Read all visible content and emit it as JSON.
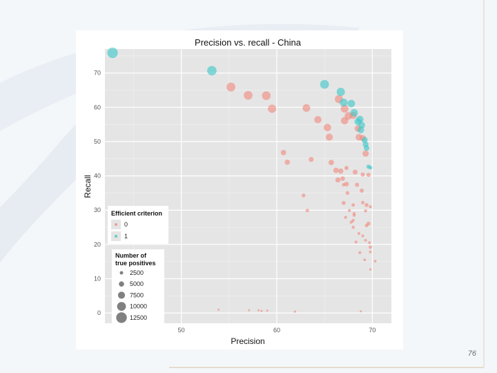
{
  "slide": {
    "page_number": "76"
  },
  "chart_data": {
    "type": "scatter",
    "title": "Precision vs. recall - China",
    "xlabel": "Precision",
    "ylabel": "Recall",
    "xlim": [
      42,
      72
    ],
    "ylim": [
      -3,
      77
    ],
    "x_ticks": [
      50,
      60,
      70
    ],
    "y_ticks": [
      0,
      10,
      20,
      30,
      40,
      50,
      60,
      70
    ],
    "grid": true,
    "colors": {
      "0": "#f08a80",
      "1": "#3ec6c8",
      "size_legend": "#555555"
    },
    "legend_color": {
      "title": "Efficient criterion",
      "position": "left",
      "entries": [
        {
          "label": "0",
          "key": "0"
        },
        {
          "label": "1",
          "key": "1"
        }
      ]
    },
    "legend_size": {
      "title_line1": "Number of",
      "title_line2": "true positives",
      "position": "bottom-left",
      "entries": [
        {
          "label": "2500",
          "value": 2500
        },
        {
          "label": "5000",
          "value": 5000
        },
        {
          "label": "7500",
          "value": 7500
        },
        {
          "label": "10000",
          "value": 10000
        },
        {
          "label": "12500",
          "value": 12500
        }
      ]
    },
    "series": [
      {
        "name": "0",
        "points": [
          [
            55.2,
            65.9,
            10000
          ],
          [
            57.0,
            63.5,
            9800
          ],
          [
            58.9,
            63.4,
            9800
          ],
          [
            59.5,
            59.6,
            9200
          ],
          [
            63.1,
            59.8,
            8400
          ],
          [
            64.3,
            56.4,
            7800
          ],
          [
            65.3,
            54.1,
            8000
          ],
          [
            65.5,
            51.3,
            7500
          ],
          [
            66.5,
            62.4,
            9000
          ],
          [
            67.1,
            59.6,
            8600
          ],
          [
            67.5,
            57.5,
            8200
          ],
          [
            67.1,
            56.1,
            8000
          ],
          [
            68.0,
            57.6,
            7500
          ],
          [
            68.5,
            53.8,
            7000
          ],
          [
            68.6,
            51.3,
            7000
          ],
          [
            69.0,
            51.0,
            6500
          ],
          [
            69.3,
            46.5,
            6500
          ],
          [
            60.7,
            46.8,
            5200
          ],
          [
            61.1,
            44.0,
            5000
          ],
          [
            63.6,
            44.8,
            4600
          ],
          [
            65.7,
            43.9,
            5200
          ],
          [
            66.2,
            41.6,
            5200
          ],
          [
            66.7,
            41.4,
            5000
          ],
          [
            67.3,
            42.3,
            3500
          ],
          [
            68.2,
            41.1,
            4400
          ],
          [
            69.0,
            40.4,
            3500
          ],
          [
            69.6,
            40.3,
            3500
          ],
          [
            66.4,
            38.8,
            4800
          ],
          [
            66.9,
            39.2,
            4000
          ],
          [
            67.3,
            37.6,
            4200
          ],
          [
            67.0,
            37.4,
            2500
          ],
          [
            68.4,
            37.4,
            3500
          ],
          [
            68.9,
            35.7,
            3500
          ],
          [
            67.4,
            35.0,
            3000
          ],
          [
            62.8,
            34.3,
            3000
          ],
          [
            67.0,
            32.1,
            3200
          ],
          [
            68.0,
            31.5,
            2500
          ],
          [
            69.0,
            32.2,
            2500
          ],
          [
            69.4,
            31.5,
            3200
          ],
          [
            63.2,
            29.9,
            2500
          ],
          [
            67.6,
            29.9,
            2000
          ],
          [
            68.1,
            29.0,
            2000
          ],
          [
            69.3,
            29.8,
            2000
          ],
          [
            69.8,
            31.0,
            2000
          ],
          [
            68.1,
            28.5,
            2000
          ],
          [
            67.2,
            27.9,
            2000
          ],
          [
            68.0,
            27.0,
            2000
          ],
          [
            67.8,
            26.5,
            2000
          ],
          [
            69.6,
            26.1,
            3200
          ],
          [
            69.4,
            25.5,
            2500
          ],
          [
            68.0,
            25.0,
            2000
          ],
          [
            68.6,
            23.2,
            1800
          ],
          [
            69.0,
            22.5,
            1800
          ],
          [
            68.3,
            20.7,
            1800
          ],
          [
            69.3,
            21.2,
            1500
          ],
          [
            69.7,
            20.5,
            1500
          ],
          [
            69.8,
            19.2,
            2500
          ],
          [
            68.7,
            17.6,
            1800
          ],
          [
            69.8,
            17.8,
            1500
          ],
          [
            69.2,
            15.5,
            1500
          ],
          [
            70.3,
            15.1,
            1500
          ],
          [
            69.8,
            12.7,
            1000
          ],
          [
            53.9,
            1.0,
            700
          ],
          [
            57.1,
            0.8,
            700
          ],
          [
            58.1,
            0.8,
            700
          ],
          [
            58.4,
            0.6,
            700
          ],
          [
            59.0,
            0.7,
            700
          ],
          [
            61.9,
            0.4,
            900
          ],
          [
            68.8,
            0.5,
            700
          ]
        ]
      },
      {
        "name": "1",
        "points": [
          [
            42.8,
            75.9,
            12300
          ],
          [
            53.2,
            70.7,
            10800
          ],
          [
            65.0,
            66.7,
            10000
          ],
          [
            66.7,
            64.5,
            9200
          ],
          [
            67.0,
            61.4,
            8600
          ],
          [
            67.8,
            61.1,
            8200
          ],
          [
            68.1,
            58.4,
            8200
          ],
          [
            68.7,
            56.5,
            7800
          ],
          [
            68.5,
            55.8,
            7500
          ],
          [
            68.9,
            54.8,
            7000
          ],
          [
            68.8,
            53.4,
            7000
          ],
          [
            69.2,
            50.5,
            6200
          ],
          [
            69.3,
            49.2,
            5800
          ],
          [
            69.4,
            48.1,
            5400
          ],
          [
            69.6,
            42.7,
            3500
          ],
          [
            69.8,
            42.4,
            3000
          ]
        ]
      }
    ]
  }
}
